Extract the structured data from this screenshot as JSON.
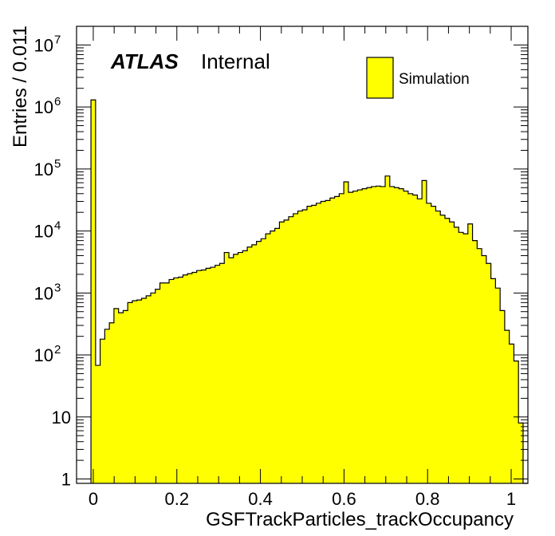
{
  "chart_data": {
    "type": "bar",
    "xlabel": "GSFTrackParticles_trackOccupancy",
    "ylabel": "Entries / 0.011",
    "log_y": true,
    "xlim": [
      -0.04,
      1.04
    ],
    "ylim": [
      0.85,
      20000000
    ],
    "bin_width": 0.011,
    "first_bin_low_edge": -0.0055,
    "fill_color": "#ffff00",
    "x_ticks": [
      {
        "value": 0,
        "label": "0"
      },
      {
        "value": 0.2,
        "label": "0.2"
      },
      {
        "value": 0.4,
        "label": "0.4"
      },
      {
        "value": 0.6,
        "label": "0.6"
      },
      {
        "value": 0.8,
        "label": "0.8"
      },
      {
        "value": 1,
        "label": "1"
      }
    ],
    "y_ticks": [
      {
        "value": 1,
        "label": "1"
      },
      {
        "value": 10,
        "label": "10"
      },
      {
        "value": 100,
        "base": "10",
        "exp": "2"
      },
      {
        "value": 1000,
        "base": "10",
        "exp": "3"
      },
      {
        "value": 10000,
        "base": "10",
        "exp": "4"
      },
      {
        "value": 100000,
        "base": "10",
        "exp": "5"
      },
      {
        "value": 1000000,
        "base": "10",
        "exp": "6"
      },
      {
        "value": 10000000,
        "base": "10",
        "exp": "7"
      }
    ],
    "series": [
      {
        "name": "Simulation",
        "values": [
          1300000,
          68,
          180,
          260,
          330,
          560,
          480,
          520,
          700,
          750,
          770,
          820,
          900,
          1000,
          1150,
          1450,
          1450,
          1650,
          1750,
          1800,
          1950,
          2050,
          2150,
          2300,
          2350,
          2500,
          2600,
          2800,
          3000,
          4500,
          3700,
          4200,
          4500,
          4800,
          5500,
          6000,
          6800,
          7500,
          9000,
          10000,
          11000,
          14000,
          15000,
          17000,
          19000,
          21000,
          22000,
          25000,
          26000,
          28000,
          30000,
          31000,
          34000,
          36000,
          40000,
          62000,
          42000,
          44000,
          46000,
          48000,
          50000,
          52000,
          53000,
          52000,
          77000,
          52000,
          50000,
          48000,
          44000,
          40000,
          38000,
          33000,
          65000,
          28000,
          25000,
          21000,
          18000,
          16000,
          14000,
          11500,
          9500,
          9000,
          13000,
          7000,
          5200,
          4000,
          3000,
          1700,
          1200,
          520,
          250,
          150,
          80,
          8,
          0
        ]
      }
    ]
  },
  "annotation": {
    "atlas": "ATLAS",
    "internal": "Internal"
  },
  "legend": {
    "label": "Simulation",
    "position": "top-right"
  }
}
